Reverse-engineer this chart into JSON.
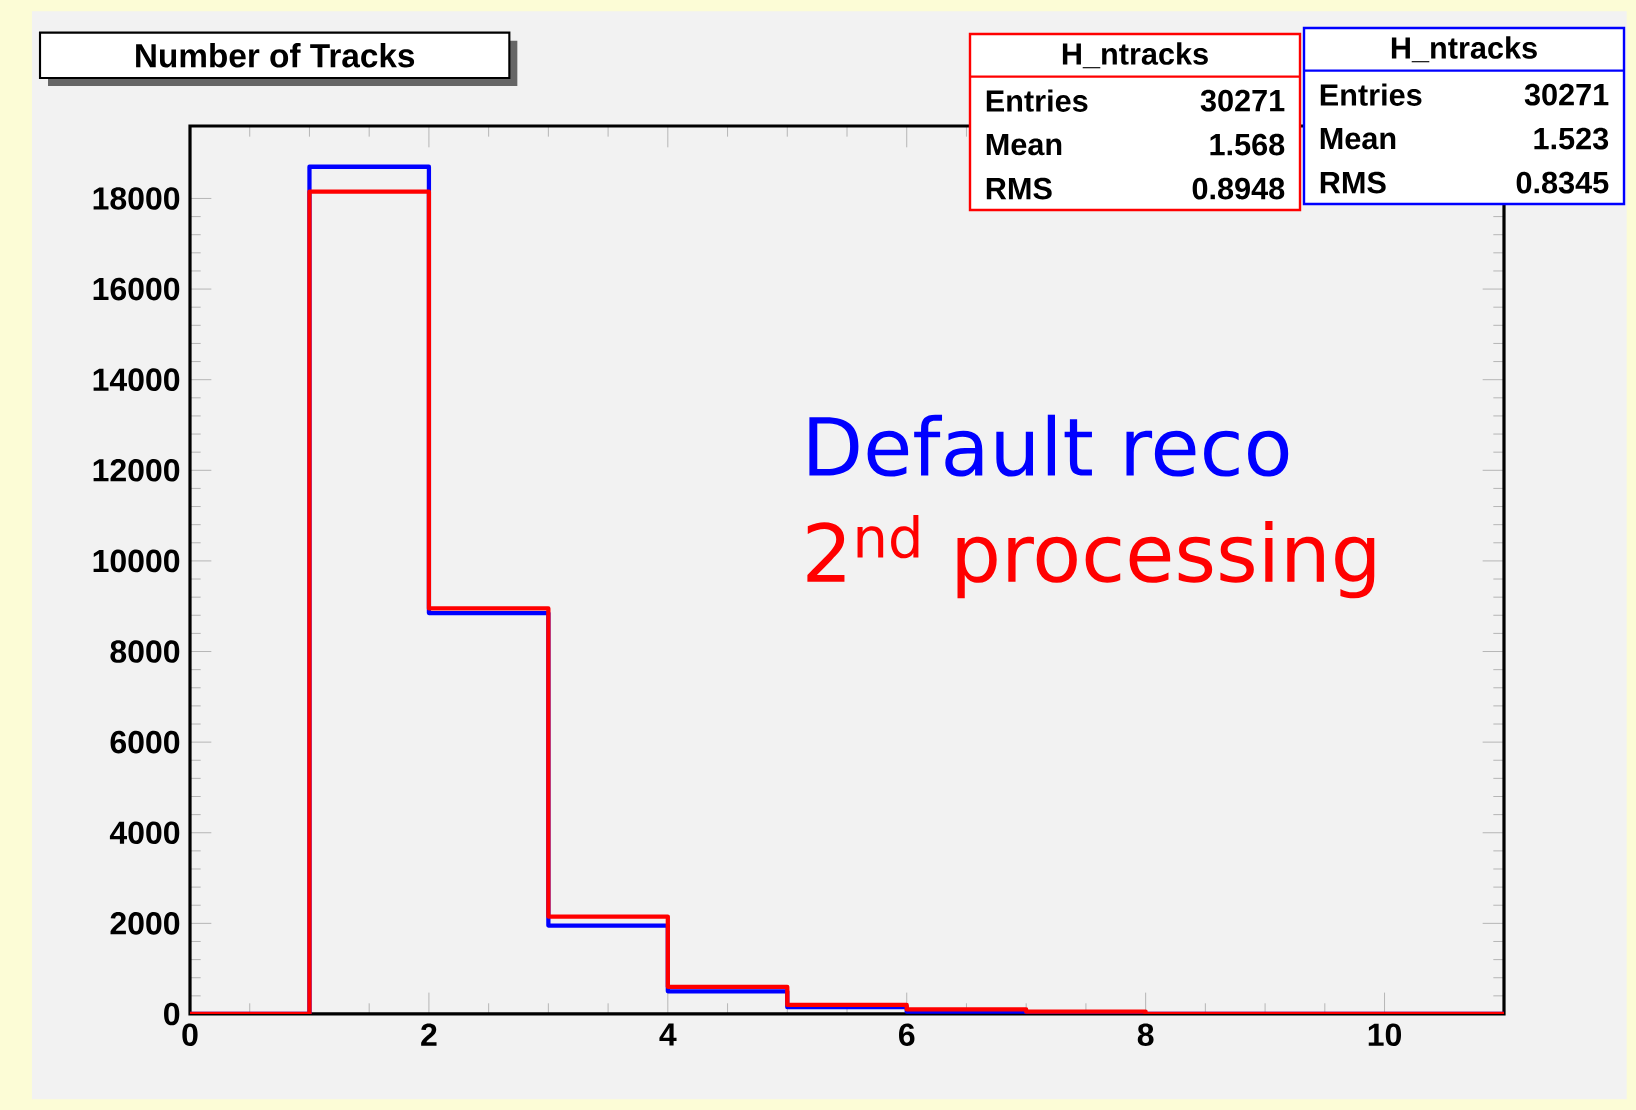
{
  "chart_data": {
    "type": "histogram",
    "title": "Number of Tracks",
    "bins": [
      0,
      1,
      2,
      3,
      4,
      5,
      6,
      7,
      8,
      9,
      10,
      11
    ],
    "series": [
      {
        "name": "Default reco",
        "color": "#0000ff",
        "values": [
          0,
          18700,
          8850,
          1950,
          500,
          150,
          50,
          0,
          0,
          0,
          0
        ]
      },
      {
        "name": "2$^{nd}$ processing",
        "color": "#ff0000",
        "values": [
          0,
          18150,
          8950,
          2150,
          600,
          200,
          100,
          50,
          0,
          0,
          0
        ]
      }
    ],
    "xlim": [
      0,
      11
    ],
    "ylim": [
      0,
      19600
    ],
    "xticks": [
      0,
      2,
      4,
      6,
      8,
      10
    ],
    "yticks": [
      0,
      2000,
      4000,
      6000,
      8000,
      10000,
      12000,
      14000,
      16000,
      18000
    ],
    "grid": false,
    "legend": false,
    "annotations": [
      "H_ntracks",
      "Entries",
      "30271",
      "Mean",
      "1.568",
      "RMS",
      "0.8948",
      "H_ntracks",
      "Entries",
      "30271",
      "Mean",
      "1.523",
      "RMS",
      "0.8345"
    ]
  }
}
